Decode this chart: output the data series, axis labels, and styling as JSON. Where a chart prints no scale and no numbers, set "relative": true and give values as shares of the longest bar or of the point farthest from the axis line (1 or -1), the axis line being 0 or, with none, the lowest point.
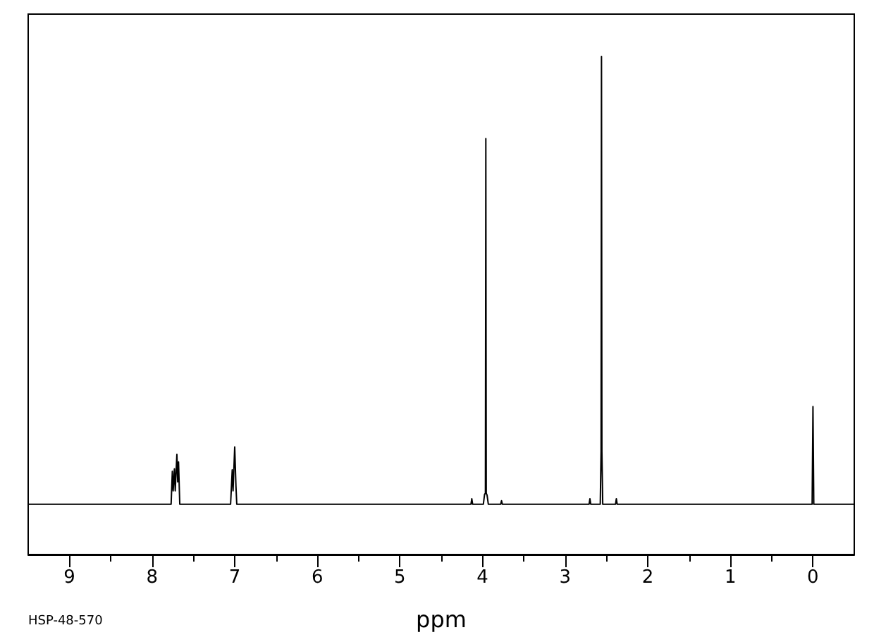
{
  "chart_data": {
    "type": "line",
    "relative": true,
    "xlabel": "ppm",
    "annotations": [
      "HSP-48-570"
    ],
    "xlim": [
      9.5,
      -0.5
    ],
    "xticks": [
      9,
      {
        "value": 8.5,
        "label": null
      },
      8,
      {
        "value": 7.5,
        "label": null
      },
      7,
      {
        "value": 6.5,
        "label": null
      },
      6,
      {
        "value": 5.5,
        "label": null
      },
      5,
      {
        "value": 4.5,
        "label": null
      },
      4,
      {
        "value": 3.5,
        "label": null
      },
      3,
      {
        "value": 2.5,
        "label": null
      },
      2,
      {
        "value": 1.5,
        "label": null
      },
      1,
      {
        "value": 0.5,
        "label": null
      },
      0
    ],
    "series": [
      {
        "color": "#000000",
        "x": [
          9.5,
          7.77,
          7.755,
          7.745,
          7.73,
          7.72,
          7.7,
          7.69,
          7.68,
          7.665,
          7.05,
          7.03,
          7.02,
          7.0,
          6.985,
          6.975,
          4.14,
          4.13,
          4.12,
          3.99,
          3.975,
          3.965,
          3.96,
          3.955,
          3.945,
          3.93,
          3.78,
          3.77,
          3.76,
          2.71,
          2.7,
          2.69,
          2.575,
          2.565,
          2.56,
          2.555,
          2.545,
          2.39,
          2.38,
          2.37,
          0.01,
          0,
          -0.01,
          -0.5
        ],
        "values": [
          0.101,
          0.101,
          0.167,
          0.128,
          0.172,
          0.128,
          0.201,
          0.146,
          0.186,
          0.101,
          0.101,
          0.17,
          0.128,
          0.216,
          0.137,
          0.101,
          0.101,
          0.112,
          0.101,
          0.101,
          0.121,
          0.123,
          0.835,
          0.123,
          0.119,
          0.101,
          0.101,
          0.108,
          0.101,
          0.101,
          0.112,
          0.101,
          0.101,
          0.207,
          1,
          0.207,
          0.101,
          0.101,
          0.112,
          0.101,
          0.101,
          0.297,
          0.101,
          0.101
        ]
      }
    ]
  }
}
